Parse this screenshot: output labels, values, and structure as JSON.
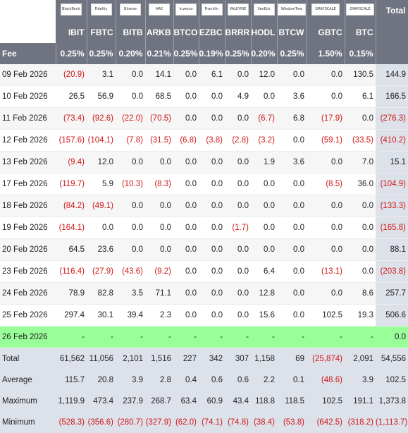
{
  "logos": [
    "BlackRock",
    "Fidelity",
    "Bitwise",
    "ARK",
    "Invesco",
    "Franklin",
    "VALKYRIE",
    "VanEck",
    "WisdomTree",
    "GRAYSCALE",
    "GRAYSCALE"
  ],
  "total_label": "Total",
  "tickers": [
    "IBIT",
    "FBTC",
    "BITB",
    "ARKB",
    "BTCO",
    "EZBC",
    "BRRR",
    "HODL",
    "BTCW",
    "GBTC",
    "BTC"
  ],
  "fee_label": "Fee",
  "fees": [
    "0.25%",
    "0.25%",
    "0.20%",
    "0.21%",
    "0.25%",
    "0.19%",
    "0.25%",
    "0.20%",
    "0.25%",
    "1.50%",
    "0.15%"
  ],
  "rows": [
    {
      "date": "09 Feb 2026",
      "values": [
        "(20.9)",
        "3.1",
        "0.0",
        "14.1",
        "0.0",
        "6.1",
        "0.0",
        "12.0",
        "0.0",
        "0.0",
        "130.5"
      ],
      "total": "144.9"
    },
    {
      "date": "10 Feb 2026",
      "values": [
        "26.5",
        "56.9",
        "0.0",
        "68.5",
        "0.0",
        "0.0",
        "4.9",
        "0.0",
        "3.6",
        "0.0",
        "6.1"
      ],
      "total": "166.5"
    },
    {
      "date": "11 Feb 2026",
      "values": [
        "(73.4)",
        "(92.6)",
        "(22.0)",
        "(70.5)",
        "0.0",
        "0.0",
        "0.0",
        "(6.7)",
        "6.8",
        "(17.9)",
        "0.0"
      ],
      "total": "(276.3)"
    },
    {
      "date": "12 Feb 2026",
      "values": [
        "(157.6)",
        "(104.1)",
        "(7.8)",
        "(31.5)",
        "(6.8)",
        "(3.8)",
        "(2.8)",
        "(3.2)",
        "0.0",
        "(59.1)",
        "(33.5)"
      ],
      "total": "(410.2)"
    },
    {
      "date": "13 Feb 2026",
      "values": [
        "(9.4)",
        "12.0",
        "0.0",
        "0.0",
        "0.0",
        "0.0",
        "0.0",
        "1.9",
        "3.6",
        "0.0",
        "7.0"
      ],
      "total": "15.1"
    },
    {
      "date": "17 Feb 2026",
      "values": [
        "(119.7)",
        "5.9",
        "(10.3)",
        "(8.3)",
        "0.0",
        "0.0",
        "0.0",
        "0.0",
        "0.0",
        "(8.5)",
        "36.0"
      ],
      "total": "(104.9)"
    },
    {
      "date": "18 Feb 2026",
      "values": [
        "(84.2)",
        "(49.1)",
        "0.0",
        "0.0",
        "0.0",
        "0.0",
        "0.0",
        "0.0",
        "0.0",
        "0.0",
        "0.0"
      ],
      "total": "(133.3)"
    },
    {
      "date": "19 Feb 2026",
      "values": [
        "(164.1)",
        "0.0",
        "0.0",
        "0.0",
        "0.0",
        "0.0",
        "(1.7)",
        "0.0",
        "0.0",
        "0.0",
        "0.0"
      ],
      "total": "(165.8)"
    },
    {
      "date": "20 Feb 2026",
      "values": [
        "64.5",
        "23.6",
        "0.0",
        "0.0",
        "0.0",
        "0.0",
        "0.0",
        "0.0",
        "0.0",
        "0.0",
        "0.0"
      ],
      "total": "88.1"
    },
    {
      "date": "23 Feb 2026",
      "values": [
        "(116.4)",
        "(27.9)",
        "(43.6)",
        "(9.2)",
        "0.0",
        "0.0",
        "0.0",
        "6.4",
        "0.0",
        "(13.1)",
        "0.0"
      ],
      "total": "(203.8)"
    },
    {
      "date": "24 Feb 2026",
      "values": [
        "78.9",
        "82.8",
        "3.5",
        "71.1",
        "0.0",
        "0.0",
        "0.0",
        "12.8",
        "0.0",
        "0.0",
        "8.6"
      ],
      "total": "257.7"
    },
    {
      "date": "25 Feb 2026",
      "values": [
        "297.4",
        "30.1",
        "39.4",
        "2.3",
        "0.0",
        "0.0",
        "0.0",
        "15.6",
        "0.0",
        "102.5",
        "19.3"
      ],
      "total": "506.6"
    },
    {
      "date": "26 Feb 2026",
      "values": [
        "-",
        "-",
        "-",
        "-",
        "-",
        "-",
        "-",
        "-",
        "-",
        "-",
        "-"
      ],
      "total": "0.0",
      "today": true
    }
  ],
  "summary": [
    {
      "label": "Total",
      "values": [
        "61,562",
        "11,056",
        "2,101",
        "1,516",
        "227",
        "342",
        "307",
        "1,158",
        "69",
        "(25,874)",
        "2,091"
      ],
      "total": "54,556"
    },
    {
      "label": "Average",
      "values": [
        "115.7",
        "20.8",
        "3.9",
        "2.8",
        "0.4",
        "0.6",
        "0.6",
        "2.2",
        "0.1",
        "(48.6)",
        "3.9"
      ],
      "total": "102.5"
    },
    {
      "label": "Maximum",
      "values": [
        "1,119.9",
        "473.4",
        "237.9",
        "268.7",
        "63.4",
        "60.9",
        "43.4",
        "118.8",
        "118.5",
        "102.5",
        "191.1"
      ],
      "total": "1,373.8"
    },
    {
      "label": "Minimum",
      "values": [
        "(528.3)",
        "(356.6)",
        "(280.7)",
        "(327.9)",
        "(62.0)",
        "(74.1)",
        "(74.8)",
        "(38.4)",
        "(53.8)",
        "(642.5)",
        "(318.2)"
      ],
      "total": "(1,113.7)"
    }
  ],
  "colors": {
    "header_bg": "#6f7480",
    "negative": "#d11a1a",
    "today_row": "#99ff99",
    "summary_bg": "#dde1ea"
  }
}
